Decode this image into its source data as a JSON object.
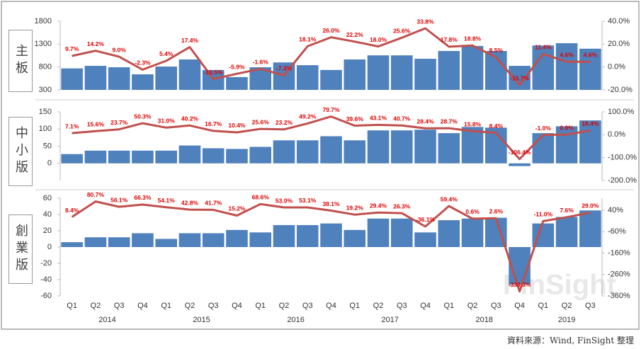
{
  "chart_data": [
    {
      "type": "combo",
      "label": "主板",
      "ylim": [
        300,
        1800
      ],
      "yticks": [
        300,
        800,
        1300,
        1800
      ],
      "y2lim": [
        -20,
        40
      ],
      "y2ticks": [
        {
          "value": -20,
          "label": "-20.0%"
        },
        {
          "value": 0,
          "label": "0.0%"
        },
        {
          "value": 20,
          "label": "20.0%"
        },
        {
          "value": 40,
          "label": "40.0%"
        }
      ],
      "series": [
        {
          "type": "bar",
          "color": "#4f81bd",
          "values": [
            770,
            825,
            795,
            640,
            810,
            965,
            735,
            580,
            795,
            900,
            840,
            735,
            965,
            1055,
            1055,
            980,
            1150,
            1260,
            1150,
            825,
            1270,
            1320,
            1200
          ]
        },
        {
          "type": "line",
          "axis": "y2",
          "color": "#c0504d",
          "values": [
            9.7,
            14.2,
            9.0,
            -2.3,
            5.4,
            17.4,
            -10.5,
            -5.9,
            -1.6,
            -7.3,
            18.1,
            26.0,
            22.2,
            18.0,
            25.6,
            33.8,
            17.8,
            18.8,
            8.5,
            -15.7,
            11.4,
            4.6,
            4.6
          ],
          "value_labels": [
            "9.7%",
            "14.2%",
            "9.0%",
            "-2.3%",
            "5.4%",
            "17.4%",
            "-10.5%",
            "-5.9%",
            "-1.6%",
            "-7.3%",
            "18.1%",
            "26.0%",
            "22.2%",
            "18.0%",
            "25.6%",
            "33.8%",
            "17.8%",
            "18.8%",
            "8.5%",
            "-15.7%",
            "11.4%",
            "4.6%",
            "4.6%"
          ]
        }
      ]
    },
    {
      "type": "combo",
      "label": "中小版",
      "ylim": [
        -50,
        150
      ],
      "yticks": [
        0,
        50,
        100,
        150
      ],
      "y2lim": [
        -200,
        100
      ],
      "y2ticks": [
        {
          "value": -200,
          "label": "-200.0%"
        },
        {
          "value": -100,
          "label": "-100.0%"
        },
        {
          "value": 0,
          "label": "0.0%"
        },
        {
          "value": 100,
          "label": "100.0%"
        }
      ],
      "series": [
        {
          "type": "bar",
          "color": "#4f81bd",
          "values": [
            27,
            37,
            37,
            37,
            37,
            52,
            44,
            42,
            48,
            67,
            67,
            79,
            67,
            96,
            96,
            98,
            88,
            106,
            104,
            -8,
            88,
            108,
            125
          ]
        },
        {
          "type": "line",
          "axis": "y2",
          "color": "#c0504d",
          "values": [
            7.1,
            15.6,
            23.7,
            50.3,
            31.0,
            40.2,
            16.7,
            10.4,
            25.6,
            23.2,
            49.2,
            79.7,
            39.6,
            43.1,
            40.7,
            28.4,
            28.7,
            15.8,
            8.4,
            -106.4,
            -1.0,
            0.9,
            18.4
          ],
          "value_labels": [
            "7.1%",
            "15.6%",
            "23.7%",
            "50.3%",
            "31.0%",
            "40.2%",
            "16.7%",
            "10.4%",
            "25.6%",
            "23.2%",
            "49.2%",
            "79.7%",
            "39.6%",
            "43.1%",
            "40.7%",
            "28.4%",
            "28.7%",
            "15.8%",
            "8.4%",
            "-106.4%",
            "-1.0%",
            "0.9%",
            "18.4%"
          ]
        }
      ]
    },
    {
      "type": "combo",
      "label": "創業版",
      "categories": [
        "Q1",
        "Q2",
        "Q3",
        "Q4",
        "Q1",
        "Q2",
        "Q3",
        "Q4",
        "Q1",
        "Q2",
        "Q3",
        "Q4",
        "Q1",
        "Q2",
        "Q3",
        "Q4",
        "Q1",
        "Q2",
        "Q3",
        "Q4",
        "Q1",
        "Q2",
        "Q3"
      ],
      "years": [
        "2014",
        "2015",
        "2016",
        "2017",
        "2018",
        "2019"
      ],
      "ylim": [
        -60,
        60
      ],
      "yticks": [
        -60,
        -40,
        -20,
        0,
        20,
        40,
        60
      ],
      "y2lim": [
        -360,
        96
      ],
      "y2ticks": [
        {
          "value": -360,
          "label": "-360%"
        },
        {
          "value": -260,
          "label": "-260%"
        },
        {
          "value": -160,
          "label": "-160%"
        },
        {
          "value": -60,
          "label": "-60%"
        },
        {
          "value": 40,
          "label": "40%"
        }
      ],
      "series": [
        {
          "type": "bar",
          "color": "#4f81bd",
          "values": [
            6,
            12,
            12,
            17,
            10,
            17,
            17,
            21,
            18,
            27,
            27,
            29,
            21,
            35,
            35,
            18,
            33,
            35,
            36,
            -46,
            29,
            37,
            45
          ]
        },
        {
          "type": "line",
          "axis": "y2",
          "color": "#c0504d",
          "values": [
            8.4,
            80.7,
            56.1,
            66.3,
            54.1,
            42.8,
            41.7,
            15.2,
            68.6,
            53.0,
            53.1,
            38.1,
            19.2,
            29.4,
            26.3,
            -36.1,
            59.4,
            0.6,
            2.6,
            -339.3,
            -11.0,
            7.6,
            29.0
          ],
          "value_labels": [
            "8.4%",
            "80.7%",
            "56.1%",
            "66.3%",
            "54.1%",
            "42.8%",
            "41.7%",
            "15.2%",
            "68.6%",
            "53.0%",
            "53.1%",
            "38.1%",
            "19.2%",
            "29.4%",
            "26.3%",
            "-36.1%",
            "59.4%",
            "0.6%",
            "2.6%",
            "-339.3%",
            "-11.0%",
            "7.6%",
            "29.0%"
          ]
        }
      ]
    }
  ],
  "watermark": "FinSight",
  "source": "資料來源：Wind, FinSight 整理"
}
